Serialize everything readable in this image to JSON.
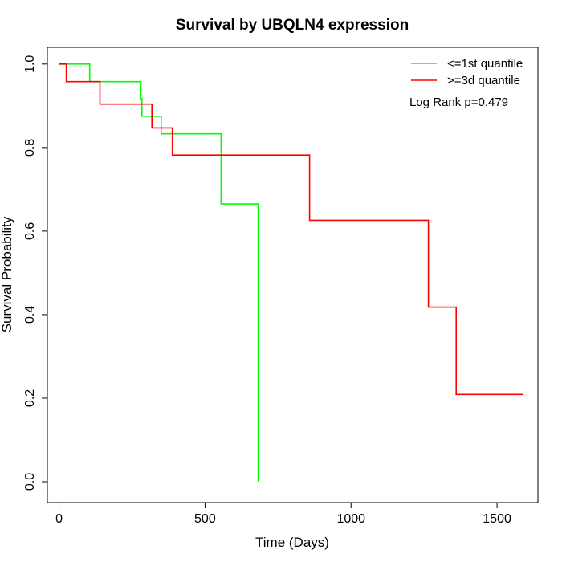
{
  "chart_data": {
    "type": "line",
    "subtype": "kaplan-meier-step",
    "title": "Survival by UBQLN4 expression",
    "xlabel": "Time (Days)",
    "ylabel": "Survival Probability",
    "xlim": [
      -40,
      1640
    ],
    "ylim": [
      -0.05,
      1.04
    ],
    "xticks": [
      0,
      500,
      1000,
      1500
    ],
    "xtick_labels": [
      "0",
      "500",
      "1000",
      "1500"
    ],
    "yticks": [
      0.0,
      0.2,
      0.4,
      0.6,
      0.8,
      1.0
    ],
    "ytick_labels": [
      "0.0",
      "0.2",
      "0.4",
      "0.6",
      "0.8",
      "1.0"
    ],
    "grid": false,
    "legend_position": "top-right",
    "annotation": "Log Rank p=0.479",
    "series": [
      {
        "name": "<=1st quantile",
        "color": "#00ff00",
        "steps": [
          [
            0,
            1.0
          ],
          [
            105,
            1.0
          ],
          [
            105,
            0.958
          ],
          [
            280,
            0.958
          ],
          [
            280,
            0.917
          ],
          [
            284,
            0.917
          ],
          [
            284,
            0.875
          ],
          [
            350,
            0.875
          ],
          [
            350,
            0.833
          ],
          [
            555,
            0.833
          ],
          [
            555,
            0.665
          ],
          [
            682,
            0.665
          ],
          [
            682,
            0.0
          ]
        ]
      },
      {
        "name": ">=3d quantile",
        "color": "#ff0000",
        "steps": [
          [
            0,
            1.0
          ],
          [
            25,
            1.0
          ],
          [
            25,
            0.958
          ],
          [
            140,
            0.958
          ],
          [
            140,
            0.904
          ],
          [
            318,
            0.904
          ],
          [
            318,
            0.847
          ],
          [
            388,
            0.847
          ],
          [
            388,
            0.782
          ],
          [
            858,
            0.782
          ],
          [
            858,
            0.626
          ],
          [
            1265,
            0.626
          ],
          [
            1265,
            0.418
          ],
          [
            1360,
            0.418
          ],
          [
            1360,
            0.209
          ],
          [
            1590,
            0.209
          ]
        ]
      }
    ]
  }
}
